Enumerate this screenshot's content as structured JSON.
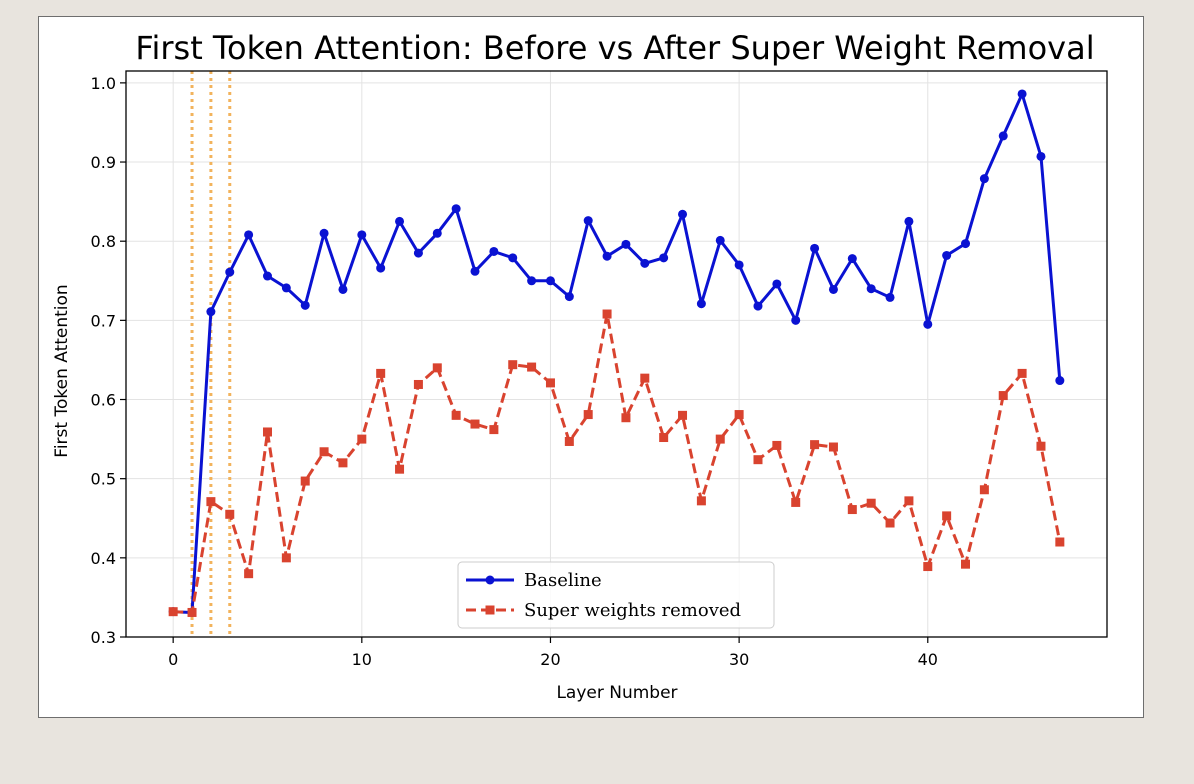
{
  "chart_data": {
    "type": "line",
    "title": "First Token Attention: Before vs After Super Weight Removal",
    "xlabel": "Layer Number",
    "ylabel": "First Token Attention",
    "xlim": [
      -2.5,
      49.5
    ],
    "ylim": [
      0.3,
      1.015
    ],
    "xticks": [
      0,
      10,
      20,
      30,
      40
    ],
    "yticks": [
      0.3,
      0.4,
      0.5,
      0.6,
      0.7,
      0.8,
      0.9,
      1.0
    ],
    "ytick_labels": [
      "0.3",
      "0.4",
      "0.5",
      "0.6",
      "0.7",
      "0.8",
      "0.9",
      "1.0"
    ],
    "grid": true,
    "legend_position": "lower-center",
    "highlight_layers": [
      1,
      2,
      3
    ],
    "highlight_color": "#f2b35c",
    "x": [
      0,
      1,
      2,
      3,
      4,
      5,
      6,
      7,
      8,
      9,
      10,
      11,
      12,
      13,
      14,
      15,
      16,
      17,
      18,
      19,
      20,
      21,
      22,
      23,
      24,
      25,
      26,
      27,
      28,
      29,
      30,
      31,
      32,
      33,
      34,
      35,
      36,
      37,
      38,
      39,
      40,
      41,
      42,
      43,
      44,
      45,
      46,
      47
    ],
    "series": [
      {
        "name": "Baseline",
        "color": "#0a12d2",
        "marker": "circle",
        "line_style": "solid",
        "values": [
          0.332,
          0.331,
          0.711,
          0.761,
          0.808,
          0.756,
          0.741,
          0.719,
          0.81,
          0.739,
          0.808,
          0.766,
          0.825,
          0.785,
          0.81,
          0.841,
          0.762,
          0.787,
          0.779,
          0.75,
          0.75,
          0.73,
          0.826,
          0.781,
          0.796,
          0.772,
          0.779,
          0.834,
          0.721,
          0.801,
          0.77,
          0.718,
          0.746,
          0.7,
          0.791,
          0.739,
          0.778,
          0.74,
          0.729,
          0.825,
          0.695,
          0.782,
          0.797,
          0.879,
          0.933,
          0.986,
          0.907,
          0.624
        ]
      },
      {
        "name": "Super weights removed",
        "color": "#d9432f",
        "marker": "square",
        "line_style": "dashed",
        "values": [
          0.332,
          0.331,
          0.471,
          0.455,
          0.38,
          0.559,
          0.4,
          0.497,
          0.534,
          0.52,
          0.55,
          0.633,
          0.512,
          0.619,
          0.64,
          0.58,
          0.569,
          0.562,
          0.644,
          0.641,
          0.621,
          0.547,
          0.581,
          0.708,
          0.577,
          0.627,
          0.552,
          0.58,
          0.472,
          0.55,
          0.581,
          0.524,
          0.542,
          0.47,
          0.543,
          0.54,
          0.461,
          0.469,
          0.444,
          0.472,
          0.389,
          0.453,
          0.392,
          0.486,
          0.605,
          0.633,
          0.541,
          0.42
        ]
      }
    ]
  }
}
